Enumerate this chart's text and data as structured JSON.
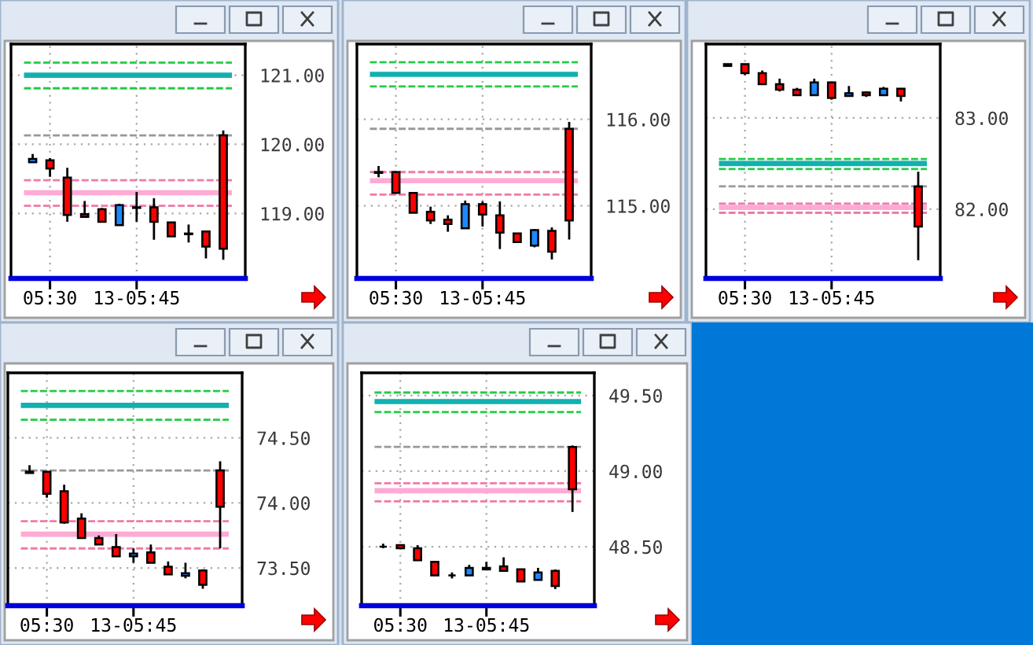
{
  "chart_data": [
    {
      "type": "candlestick",
      "categories": [
        null,
        "05:30",
        null,
        null,
        null,
        null,
        "13-05:45",
        null,
        null,
        null,
        null,
        null
      ],
      "ohlc": [
        [
          119.74,
          119.86,
          119.74,
          119.79
        ],
        [
          119.77,
          119.8,
          119.53,
          119.65
        ],
        [
          119.52,
          119.66,
          118.88,
          118.98
        ],
        [
          118.99,
          119.18,
          118.94,
          118.95
        ],
        [
          119.06,
          119.08,
          118.88,
          118.88
        ],
        [
          118.83,
          119.14,
          118.83,
          119.12
        ],
        [
          119.08,
          119.31,
          118.88,
          119.09
        ],
        [
          119.09,
          119.22,
          118.62,
          118.88
        ],
        [
          118.87,
          118.87,
          118.67,
          118.67
        ],
        [
          118.7,
          118.84,
          118.58,
          118.71
        ],
        [
          118.74,
          118.74,
          118.35,
          118.52
        ],
        [
          120.13,
          120.2,
          118.33,
          118.49
        ]
      ],
      "colors": [
        "#1e88ff",
        "#ff0000",
        "#ff0000",
        "#ff0000",
        "#ff0000",
        "#1e88ff",
        "#1e88ff",
        "#ff0000",
        "#ff0000",
        "#1e88ff",
        "#ff0000",
        "#ff0000"
      ],
      "ylim": [
        118.06,
        121.45
      ],
      "yticks": [
        {
          "value": 119,
          "label": "119.00"
        },
        {
          "value": 120,
          "label": "120.00"
        },
        {
          "value": 121,
          "label": "121.00"
        }
      ],
      "ref_lines": [
        {
          "axis": "y",
          "value": 121.18,
          "color": "#22cc44",
          "line_style": "dashed"
        },
        {
          "axis": "y",
          "value": 121.0,
          "color": "#12b0b0",
          "line_style": "solid"
        },
        {
          "axis": "y",
          "value": 120.81,
          "color": "#22cc44",
          "line_style": "dashed"
        },
        {
          "axis": "y",
          "value": 120.13,
          "color": "#999999",
          "line_style": "dashed"
        },
        {
          "axis": "y",
          "value": 119.48,
          "color": "#f07aa8",
          "line_style": "dashed"
        },
        {
          "axis": "y",
          "value": 119.3,
          "color": "#ffaad4",
          "line_style": "solid"
        },
        {
          "axis": "y",
          "value": 119.11,
          "color": "#f07aa8",
          "line_style": "dashed"
        }
      ],
      "grid": true
    },
    {
      "type": "candlestick",
      "categories": [
        null,
        "05:30",
        null,
        null,
        null,
        null,
        "13-05:45",
        null,
        null,
        null,
        null,
        null
      ],
      "ohlc": [
        [
          115.38,
          115.46,
          115.33,
          115.39
        ],
        [
          115.39,
          115.4,
          115.15,
          115.15
        ],
        [
          115.15,
          115.15,
          114.92,
          114.92
        ],
        [
          114.93,
          114.99,
          114.79,
          114.83
        ],
        [
          114.84,
          114.89,
          114.7,
          114.79
        ],
        [
          114.74,
          115.06,
          114.74,
          115.02
        ],
        [
          115.02,
          115.05,
          114.76,
          114.9
        ],
        [
          114.89,
          115.05,
          114.5,
          114.69
        ],
        [
          114.68,
          114.68,
          114.58,
          114.58
        ],
        [
          114.54,
          114.73,
          114.52,
          114.72
        ],
        [
          114.71,
          114.75,
          114.38,
          114.47
        ],
        [
          115.89,
          115.97,
          114.61,
          114.83
        ]
      ],
      "colors": [
        "#1e88ff",
        "#ff0000",
        "#ff0000",
        "#ff0000",
        "#ff0000",
        "#1e88ff",
        "#ff0000",
        "#ff0000",
        "#ff0000",
        "#1e88ff",
        "#ff0000",
        "#ff0000"
      ],
      "ylim": [
        114.16,
        116.87
      ],
      "yticks": [
        {
          "value": 115,
          "label": "115.00"
        },
        {
          "value": 116,
          "label": "116.00"
        }
      ],
      "ref_lines": [
        {
          "axis": "y",
          "value": 116.66,
          "color": "#22cc44",
          "line_style": "dashed"
        },
        {
          "axis": "y",
          "value": 116.52,
          "color": "#12b0b0",
          "line_style": "solid"
        },
        {
          "axis": "y",
          "value": 116.38,
          "color": "#22cc44",
          "line_style": "dashed"
        },
        {
          "axis": "y",
          "value": 115.89,
          "color": "#999999",
          "line_style": "dashed"
        },
        {
          "axis": "y",
          "value": 115.39,
          "color": "#f07aa8",
          "line_style": "dashed"
        },
        {
          "axis": "y",
          "value": 115.29,
          "color": "#ffaad4",
          "line_style": "solid"
        },
        {
          "axis": "y",
          "value": 115.13,
          "color": "#f07aa8",
          "line_style": "dashed"
        }
      ],
      "grid": true
    },
    {
      "type": "candlestick",
      "categories": [
        null,
        "05:30",
        null,
        null,
        null,
        null,
        "13-05:45",
        null,
        null,
        null,
        null,
        null
      ],
      "ohlc": [
        [
          83.57,
          83.59,
          83.57,
          83.59
        ],
        [
          83.59,
          83.59,
          83.47,
          83.49
        ],
        [
          83.49,
          83.52,
          83.37,
          83.37
        ],
        [
          83.37,
          83.43,
          83.29,
          83.31
        ],
        [
          83.31,
          83.33,
          83.25,
          83.25
        ],
        [
          83.25,
          83.43,
          83.25,
          83.39
        ],
        [
          83.39,
          83.39,
          83.2,
          83.22
        ],
        [
          83.24,
          83.35,
          83.24,
          83.27
        ],
        [
          83.28,
          83.29,
          83.23,
          83.25
        ],
        [
          83.25,
          83.34,
          83.24,
          83.32
        ],
        [
          83.32,
          83.32,
          83.18,
          83.24
        ],
        [
          82.25,
          82.41,
          81.44,
          81.81
        ]
      ],
      "colors": [
        "#1e88ff",
        "#ff0000",
        "#ff0000",
        "#ff0000",
        "#ff0000",
        "#1e88ff",
        "#ff0000",
        "#1e88ff",
        "#ff0000",
        "#1e88ff",
        "#ff0000",
        "#ff0000"
      ],
      "ylim": [
        81.24,
        83.81
      ],
      "yticks": [
        {
          "value": 82,
          "label": "82.00"
        },
        {
          "value": 83,
          "label": "83.00"
        }
      ],
      "ref_lines": [
        {
          "axis": "y",
          "value": 82.55,
          "color": "#22cc44",
          "line_style": "dashed"
        },
        {
          "axis": "y",
          "value": 82.5,
          "color": "#12b0b0",
          "line_style": "solid"
        },
        {
          "axis": "y",
          "value": 82.44,
          "color": "#22cc44",
          "line_style": "dashed"
        },
        {
          "axis": "y",
          "value": 82.25,
          "color": "#999999",
          "line_style": "dashed"
        },
        {
          "axis": "y",
          "value": 82.06,
          "color": "#f07aa8",
          "line_style": "dashed"
        },
        {
          "axis": "y",
          "value": 82.02,
          "color": "#ffaad4",
          "line_style": "solid"
        },
        {
          "axis": "y",
          "value": 81.96,
          "color": "#f07aa8",
          "line_style": "dashed"
        }
      ],
      "grid": true
    },
    {
      "type": "candlestick",
      "categories": [
        null,
        "05:30",
        null,
        null,
        null,
        null,
        "13-05:45",
        null,
        null,
        null,
        null,
        null
      ],
      "ohlc": [
        [
          74.23,
          74.29,
          74.23,
          74.24
        ],
        [
          74.24,
          74.24,
          74.04,
          74.07
        ],
        [
          74.09,
          74.14,
          73.84,
          73.85
        ],
        [
          73.88,
          73.92,
          73.73,
          73.73
        ],
        [
          73.73,
          73.75,
          73.68,
          73.68
        ],
        [
          73.66,
          73.76,
          73.59,
          73.59
        ],
        [
          73.59,
          73.65,
          73.54,
          73.61
        ],
        [
          73.62,
          73.68,
          73.54,
          73.54
        ],
        [
          73.51,
          73.55,
          73.45,
          73.45
        ],
        [
          73.44,
          73.54,
          73.42,
          73.46
        ],
        [
          73.48,
          73.49,
          73.34,
          73.37
        ],
        [
          74.25,
          74.32,
          73.65,
          73.97
        ]
      ],
      "colors": [
        "#1e88ff",
        "#ff0000",
        "#ff0000",
        "#ff0000",
        "#ff0000",
        "#ff0000",
        "#1e88ff",
        "#ff0000",
        "#ff0000",
        "#1e88ff",
        "#ff0000",
        "#ff0000"
      ],
      "ylim": [
        73.21,
        75.0
      ],
      "yticks": [
        {
          "value": 73.5,
          "label": "73.50"
        },
        {
          "value": 74,
          "label": "74.00"
        },
        {
          "value": 74.5,
          "label": "74.50"
        }
      ],
      "ref_lines": [
        {
          "axis": "y",
          "value": 74.86,
          "color": "#22cc44",
          "line_style": "dashed"
        },
        {
          "axis": "y",
          "value": 74.75,
          "color": "#12b0b0",
          "line_style": "solid"
        },
        {
          "axis": "y",
          "value": 74.64,
          "color": "#22cc44",
          "line_style": "dashed"
        },
        {
          "axis": "y",
          "value": 74.25,
          "color": "#999999",
          "line_style": "dashed"
        },
        {
          "axis": "y",
          "value": 73.86,
          "color": "#f07aa8",
          "line_style": "dashed"
        },
        {
          "axis": "y",
          "value": 73.76,
          "color": "#ffaad4",
          "line_style": "solid"
        },
        {
          "axis": "y",
          "value": 73.65,
          "color": "#f07aa8",
          "line_style": "dashed"
        }
      ],
      "grid": true
    },
    {
      "type": "candlestick",
      "categories": [
        null,
        "05:30",
        null,
        null,
        null,
        null,
        "13-05:45",
        null,
        null,
        null,
        null,
        null
      ],
      "ohlc": [
        [
          48.5,
          48.52,
          48.49,
          48.5
        ],
        [
          48.51,
          48.51,
          48.49,
          48.49
        ],
        [
          48.49,
          48.51,
          48.41,
          48.41
        ],
        [
          48.4,
          48.4,
          48.31,
          48.31
        ],
        [
          48.31,
          48.33,
          48.29,
          48.31
        ],
        [
          48.31,
          48.38,
          48.31,
          48.36
        ],
        [
          48.35,
          48.4,
          48.35,
          48.36
        ],
        [
          48.37,
          48.43,
          48.34,
          48.34
        ],
        [
          48.35,
          48.35,
          48.27,
          48.27
        ],
        [
          48.28,
          48.36,
          48.28,
          48.33
        ],
        [
          48.34,
          48.35,
          48.22,
          48.24
        ],
        [
          49.16,
          49.17,
          48.73,
          48.88
        ]
      ],
      "colors": [
        "#000000",
        "#ff0000",
        "#ff0000",
        "#ff0000",
        "#000000",
        "#1e88ff",
        "#1e88ff",
        "#ff0000",
        "#ff0000",
        "#1e88ff",
        "#ff0000",
        "#ff0000"
      ],
      "ylim": [
        48.11,
        49.65
      ],
      "yticks": [
        {
          "value": 48.5,
          "label": "48.50"
        },
        {
          "value": 49,
          "label": "49.00"
        },
        {
          "value": 49.5,
          "label": "49.50"
        }
      ],
      "ref_lines": [
        {
          "axis": "y",
          "value": 49.52,
          "color": "#22cc44",
          "line_style": "dashed"
        },
        {
          "axis": "y",
          "value": 49.46,
          "color": "#12b0b0",
          "line_style": "solid"
        },
        {
          "axis": "y",
          "value": 49.39,
          "color": "#22cc44",
          "line_style": "dashed"
        },
        {
          "axis": "y",
          "value": 49.16,
          "color": "#999999",
          "line_style": "dashed"
        },
        {
          "axis": "y",
          "value": 48.92,
          "color": "#f07aa8",
          "line_style": "dashed"
        },
        {
          "axis": "y",
          "value": 48.87,
          "color": "#ffaad4",
          "line_style": "solid"
        },
        {
          "axis": "y",
          "value": 48.8,
          "color": "#f07aa8",
          "line_style": "dashed"
        }
      ],
      "grid": true
    }
  ]
}
